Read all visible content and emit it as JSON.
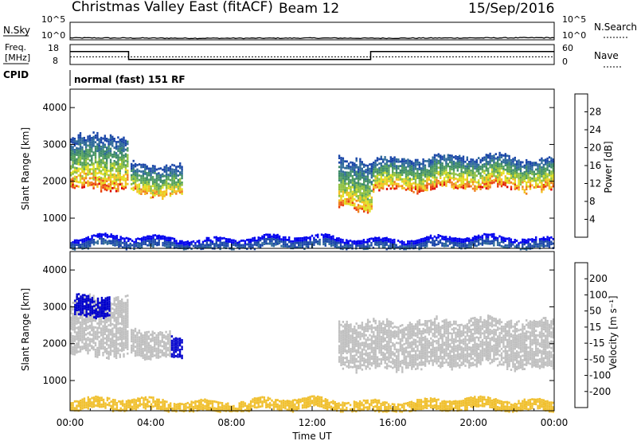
{
  "header": {
    "radar": "Christmas Valley East (fitACF)",
    "beam": "Beam 12",
    "date": "15/Sep/2016"
  },
  "noise_panel": {
    "left_label": "N.Sky",
    "right_label": "N.Search",
    "left_ticks": [
      "10^5",
      "10^0"
    ],
    "right_ticks": [
      "10^5",
      "10^0"
    ]
  },
  "freq_panel": {
    "left_label_line1": "Freq.",
    "left_label_line2": "[MHz]",
    "right_label": "Nave",
    "left_ticks": [
      "18",
      "8"
    ],
    "right_ticks": [
      "60",
      "0"
    ]
  },
  "cpid_panel": {
    "label": "CPID",
    "program": "normal (fast) 151 RF"
  },
  "power_panel": {
    "ylabel": "Slant Range [km]",
    "yticks": [
      "1000",
      "2000",
      "3000",
      "4000"
    ],
    "colorbar_label": "Power [dB]",
    "colorbar_ticks": [
      "4",
      "8",
      "12",
      "16",
      "20",
      "24",
      "28"
    ]
  },
  "velocity_panel": {
    "ylabel": "Slant Range [km]",
    "yticks": [
      "1000",
      "2000",
      "3000",
      "4000"
    ],
    "colorbar_label": "Velocity [m s⁻¹]",
    "colorbar_ticks": [
      "200",
      "100",
      "50",
      "15",
      "-15",
      "-50",
      "-100",
      "-200"
    ]
  },
  "xaxis": {
    "label": "Time UT",
    "ticks": [
      "00:00",
      "04:00",
      "08:00",
      "12:00",
      "16:00",
      "20:00",
      "00:00"
    ]
  },
  "chart_data": [
    {
      "type": "line",
      "name": "noise",
      "x_hours": [
        0,
        3,
        6,
        9,
        12,
        15,
        18,
        21,
        24
      ],
      "sky_log10": [
        0.55,
        0.5,
        0.45,
        0.45,
        0.5,
        0.45,
        0.5,
        0.55,
        0.6
      ],
      "ylim": [
        0,
        5
      ]
    },
    {
      "type": "line",
      "name": "frequency",
      "x_hours": [
        0,
        2.9,
        2.9,
        14.9,
        14.9,
        24
      ],
      "freq_mhz": [
        14.5,
        14.5,
        10.5,
        10.5,
        14.5,
        14.5
      ],
      "nave": [
        23,
        23,
        23,
        23,
        23,
        23
      ],
      "ylim": [
        8,
        18
      ]
    },
    {
      "type": "heatmap",
      "name": "power",
      "xlim_hours": [
        0,
        24
      ],
      "ylim_km": [
        180,
        4500
      ],
      "colormap": [
        "#0000ee",
        "#1a46a8",
        "#2f6a9a",
        "#3d8a6a",
        "#53a05a",
        "#8fc040",
        "#e0e020",
        "#f4c020",
        "#f08020",
        "#e84010",
        "#dd0000"
      ],
      "clim_db": [
        0,
        30
      ],
      "features": [
        {
          "t0": 0.0,
          "t1": 2.9,
          "r0": 1700,
          "r1": 3300,
          "peak_db": 26
        },
        {
          "t0": 3.0,
          "t1": 5.6,
          "r0": 1600,
          "r1": 2500,
          "peak_db": 24
        },
        {
          "t0": 13.3,
          "t1": 15.0,
          "r0": 1200,
          "r1": 2700,
          "peak_db": 25
        },
        {
          "t0": 15.0,
          "t1": 24.0,
          "r0": 1750,
          "r1": 2700,
          "peak_db": 27
        },
        {
          "t0": 0.0,
          "t1": 24.0,
          "r0": 180,
          "r1": 500,
          "peak_db": 8
        }
      ]
    },
    {
      "type": "heatmap",
      "name": "velocity",
      "xlim_hours": [
        0,
        24
      ],
      "ylim_km": [
        180,
        4500
      ],
      "colormap": [
        "#0000cc",
        "#2a52a0",
        "#3a8a3a",
        "#6ac840",
        "#c0c0c0",
        "#f0c030",
        "#f08020",
        "#e04010",
        "#e00000"
      ],
      "clim_ms": [
        -200,
        200
      ],
      "features": [
        {
          "t0": 0.0,
          "t1": 2.9,
          "r0": 1600,
          "r1": 3300,
          "vel_ms": 0
        },
        {
          "t0": 0.2,
          "t1": 2.0,
          "r0": 2700,
          "r1": 3300,
          "vel_ms": 200
        },
        {
          "t0": 3.0,
          "t1": 5.0,
          "r0": 1600,
          "r1": 2400,
          "vel_ms": 0
        },
        {
          "t0": 5.0,
          "t1": 5.6,
          "r0": 1600,
          "r1": 2200,
          "vel_ms": 220
        },
        {
          "t0": 13.3,
          "t1": 24.0,
          "r0": 1300,
          "r1": 2700,
          "vel_ms": 0
        },
        {
          "t0": 0.0,
          "t1": 24.0,
          "r0": 180,
          "r1": 500,
          "vel_ms": -40
        }
      ]
    }
  ]
}
